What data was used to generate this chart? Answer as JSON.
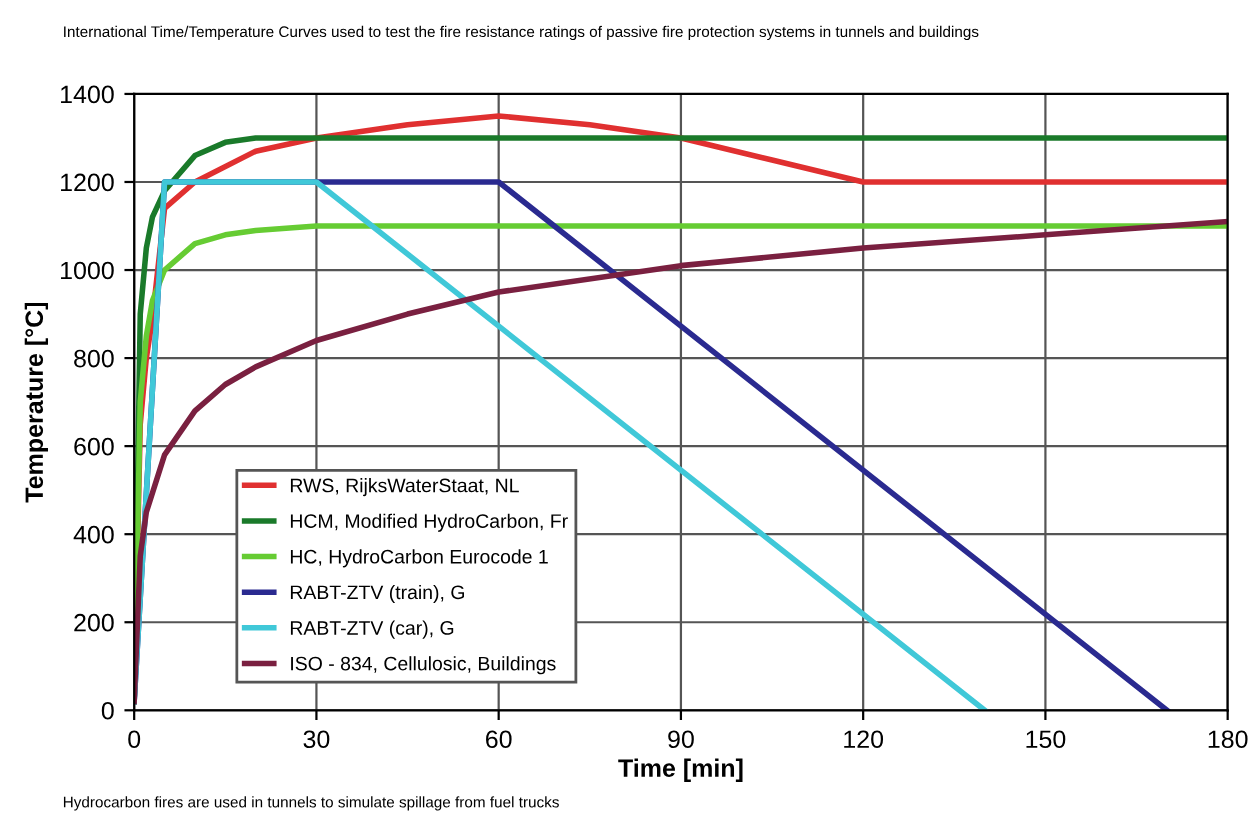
{
  "chart_data": {
    "type": "line",
    "title": "International Time/Temperature Curves used to test the fire resistance ratings of passive fire protection systems in tunnels and buildings",
    "xlabel": "Time [min]",
    "ylabel": "Temperature [°C]",
    "annotations": [
      "Hydrocarbon fires are used in tunnels to simulate spillage from fuel trucks"
    ],
    "xlim": [
      0,
      180
    ],
    "ylim": [
      0,
      1400
    ],
    "xticks": [
      0,
      30,
      60,
      90,
      120,
      150,
      180
    ],
    "yticks": [
      0,
      200,
      400,
      600,
      800,
      1000,
      1200,
      1400
    ],
    "grid": true,
    "legend": "bottom left",
    "marker": "none",
    "line_style": "solid",
    "series": [
      {
        "name": "RWS, RijksWaterStaat, NL",
        "color": "#e03030",
        "x": [
          0,
          1,
          2,
          3,
          5,
          10,
          20,
          30,
          45,
          60,
          75,
          90,
          105,
          120,
          180
        ],
        "values": [
          20,
          650,
          800,
          890,
          1140,
          1200,
          1270,
          1300,
          1330,
          1350,
          1330,
          1300,
          1250,
          1200,
          1200
        ]
      },
      {
        "name": "HCM, Modified HydroCarbon, Fr",
        "color": "#1a7a2a",
        "x": [
          0,
          1,
          2,
          3,
          5,
          10,
          15,
          20,
          30,
          180
        ],
        "values": [
          20,
          900,
          1050,
          1120,
          1180,
          1260,
          1290,
          1300,
          1300,
          1300
        ]
      },
      {
        "name": "HC, HydroCarbon Eurocode 1",
        "color": "#66cc33",
        "x": [
          0,
          1,
          2,
          3,
          5,
          10,
          15,
          20,
          30,
          180
        ],
        "values": [
          20,
          700,
          850,
          930,
          1000,
          1060,
          1080,
          1090,
          1100,
          1100
        ]
      },
      {
        "name": "RABT-ZTV (train), G",
        "color": "#2a2a90",
        "x": [
          0,
          5,
          60,
          170
        ],
        "values": [
          20,
          1200,
          1200,
          0
        ]
      },
      {
        "name": "RABT-ZTV (car), G",
        "color": "#40c8d8",
        "x": [
          0,
          5,
          30,
          140
        ],
        "values": [
          20,
          1200,
          1200,
          0
        ]
      },
      {
        "name": "ISO - 834, Cellulosic, Buildings",
        "color": "#7a2040",
        "x": [
          0,
          1,
          2,
          5,
          10,
          15,
          20,
          30,
          45,
          60,
          90,
          120,
          150,
          180
        ],
        "values": [
          20,
          350,
          450,
          580,
          680,
          740,
          780,
          840,
          900,
          950,
          1010,
          1050,
          1080,
          1110
        ]
      }
    ]
  }
}
